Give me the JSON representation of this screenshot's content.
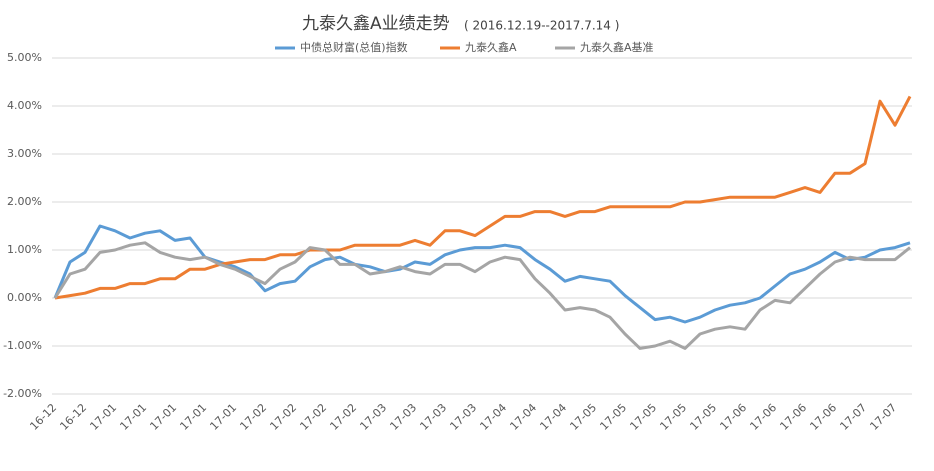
{
  "chart_data": {
    "type": "line",
    "title": "九泰久鑫A业绩走势",
    "subtitle": "( 2016.12.19--2017.7.14 )",
    "categories": [
      "16-12",
      null,
      "16-12",
      null,
      "17-01",
      null,
      "17-01",
      null,
      "17-01",
      null,
      "17-01",
      null,
      "17-01",
      null,
      "17-02",
      null,
      "17-02",
      null,
      "17-02",
      null,
      "17-02",
      null,
      "17-03",
      null,
      "17-03",
      null,
      "17-03",
      null,
      "17-03",
      null,
      "17-04",
      null,
      "17-04",
      null,
      "17-04",
      null,
      "17-05",
      null,
      "17-05",
      null,
      "17-05",
      null,
      "17-05",
      null,
      "17-05",
      null,
      "17-06",
      null,
      "17-06",
      null,
      "17-06",
      null,
      "17-06",
      null,
      "17-07",
      null,
      "17-07",
      null
    ],
    "series": [
      {
        "name": "中债总财富(总值)指数",
        "color": "#5b9bd5",
        "values": [
          0,
          0.75,
          0.95,
          1.5,
          1.4,
          1.25,
          1.35,
          1.4,
          1.2,
          1.25,
          0.85,
          0.75,
          0.65,
          0.5,
          0.15,
          0.3,
          0.35,
          0.65,
          0.8,
          0.85,
          0.7,
          0.65,
          0.55,
          0.6,
          0.75,
          0.7,
          0.9,
          1.0,
          1.05,
          1.05,
          1.1,
          1.05,
          0.8,
          0.6,
          0.35,
          0.45,
          0.4,
          0.35,
          0.05,
          -0.2,
          -0.45,
          -0.4,
          -0.5,
          -0.4,
          -0.25,
          -0.15,
          -0.1,
          0.0,
          0.25,
          0.5,
          0.6,
          0.75,
          0.95,
          0.8,
          0.85,
          1.0,
          1.05,
          1.15
        ]
      },
      {
        "name": "九泰久鑫A",
        "color": "#ed7d31",
        "values": [
          0,
          0.05,
          0.1,
          0.2,
          0.2,
          0.3,
          0.3,
          0.4,
          0.4,
          0.6,
          0.6,
          0.7,
          0.75,
          0.8,
          0.8,
          0.9,
          0.9,
          1.0,
          1.0,
          1.0,
          1.1,
          1.1,
          1.1,
          1.1,
          1.2,
          1.1,
          1.4,
          1.4,
          1.3,
          1.5,
          1.7,
          1.7,
          1.8,
          1.8,
          1.7,
          1.8,
          1.8,
          1.9,
          1.9,
          1.9,
          1.9,
          1.9,
          2.0,
          2.0,
          2.05,
          2.1,
          2.1,
          2.1,
          2.1,
          2.2,
          2.3,
          2.2,
          2.6,
          2.6,
          2.8,
          4.1,
          3.6,
          4.2
        ]
      },
      {
        "name": "九泰久鑫A基准",
        "color": "#a5a5a5",
        "values": [
          0,
          0.5,
          0.6,
          0.95,
          1.0,
          1.1,
          1.15,
          0.95,
          0.85,
          0.8,
          0.85,
          0.7,
          0.6,
          0.45,
          0.3,
          0.6,
          0.75,
          1.05,
          1.0,
          0.7,
          0.7,
          0.5,
          0.55,
          0.65,
          0.55,
          0.5,
          0.7,
          0.7,
          0.55,
          0.75,
          0.85,
          0.8,
          0.4,
          0.1,
          -0.25,
          -0.2,
          -0.25,
          -0.4,
          -0.75,
          -1.05,
          -1.0,
          -0.9,
          -1.05,
          -0.75,
          -0.65,
          -0.6,
          -0.65,
          -0.25,
          -0.05,
          -0.1,
          0.2,
          0.5,
          0.75,
          0.85,
          0.8,
          0.8,
          0.8,
          1.05
        ]
      }
    ],
    "ylim": [
      -2,
      5
    ],
    "yticks": [
      {
        "value": -2,
        "label": "-2.00%"
      },
      {
        "value": -1,
        "label": "-1.00%"
      },
      {
        "value": 0,
        "label": "0.00%"
      },
      {
        "value": 1,
        "label": "1.00%"
      },
      {
        "value": 2,
        "label": "2.00%"
      },
      {
        "value": 3,
        "label": "3.00%"
      },
      {
        "value": 4,
        "label": "4.00%"
      },
      {
        "value": 5,
        "label": "5.00%"
      }
    ],
    "grid": true,
    "legend": "top"
  }
}
